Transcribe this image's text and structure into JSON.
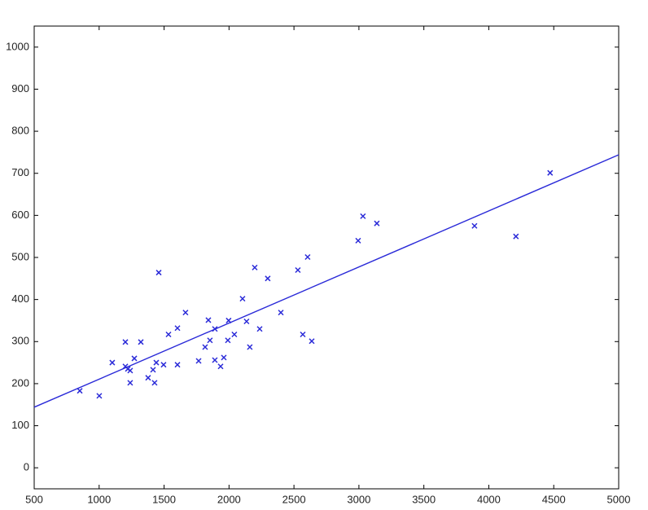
{
  "chart_data": {
    "type": "scatter",
    "marker": "x",
    "color": "#2a2ad8",
    "x": [
      851,
      1001,
      1101,
      1202,
      1202,
      1239,
      1239,
      1221,
      1271,
      1321,
      1377,
      1415,
      1427,
      1440,
      1459,
      1496,
      1534,
      1603,
      1603,
      1665,
      1766,
      1816,
      1841,
      1853,
      1891,
      1891,
      1935,
      1960,
      1991,
      1997,
      2041,
      2104,
      2135,
      2160,
      2198,
      2236,
      2298,
      2399,
      2530,
      2568,
      2605,
      2637,
      2994,
      3031,
      3138,
      3890,
      4209,
      4472
    ],
    "values": [
      183,
      171,
      250,
      299,
      241,
      231,
      202,
      235,
      260,
      299,
      214,
      233,
      202,
      250,
      464,
      245,
      317,
      332,
      245,
      369,
      254,
      287,
      351,
      303,
      330,
      256,
      241,
      262,
      303,
      350,
      317,
      402,
      348,
      287,
      476,
      330,
      450,
      369,
      470,
      317,
      501,
      301,
      540,
      598,
      581,
      575,
      550,
      701
    ],
    "fit_line": {
      "type": "line",
      "color": "#2a2ad8",
      "x": [
        500,
        5000
      ],
      "values": [
        144,
        744
      ]
    },
    "xlim": [
      500,
      5000
    ],
    "xticks": [
      500,
      1000,
      1500,
      2000,
      2500,
      3000,
      3500,
      4000,
      4500,
      5000
    ],
    "ylim": [
      -50,
      1050
    ],
    "yticks": [
      0,
      100,
      200,
      300,
      400,
      500,
      600,
      700,
      800,
      900,
      1000
    ]
  }
}
